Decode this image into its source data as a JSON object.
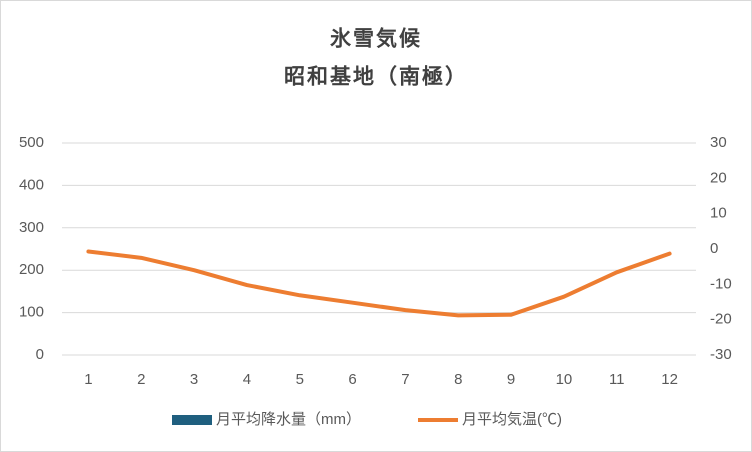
{
  "chart_data": {
    "type": "bar+line",
    "title": [
      "氷雪気候",
      "昭和基地（南極）"
    ],
    "categories": [
      1,
      2,
      3,
      4,
      5,
      6,
      7,
      8,
      9,
      10,
      11,
      12
    ],
    "series": [
      {
        "name": "月平均降水量（mm）",
        "type": "bar",
        "color": "#1f5f7f",
        "values": [
          0,
          0,
          0,
          0,
          0,
          0,
          0,
          0,
          0,
          0,
          0,
          0
        ]
      },
      {
        "name": "月平均気温(℃)",
        "type": "line",
        "axis": "y2",
        "color": "#ed7d31",
        "values": [
          -0.7,
          -2.5,
          -6.0,
          -10.2,
          -13.1,
          -15.2,
          -17.3,
          -18.8,
          -18.6,
          -13.5,
          -6.6,
          -1.3
        ]
      }
    ],
    "ylim": [
      0,
      500
    ],
    "yticks": [
      0,
      100,
      200,
      300,
      400,
      500
    ],
    "y2lim": [
      -30,
      30
    ],
    "y2ticks": [
      -30,
      -20,
      -10,
      0,
      10,
      20,
      30
    ],
    "grid": true,
    "legend": "bottom"
  }
}
